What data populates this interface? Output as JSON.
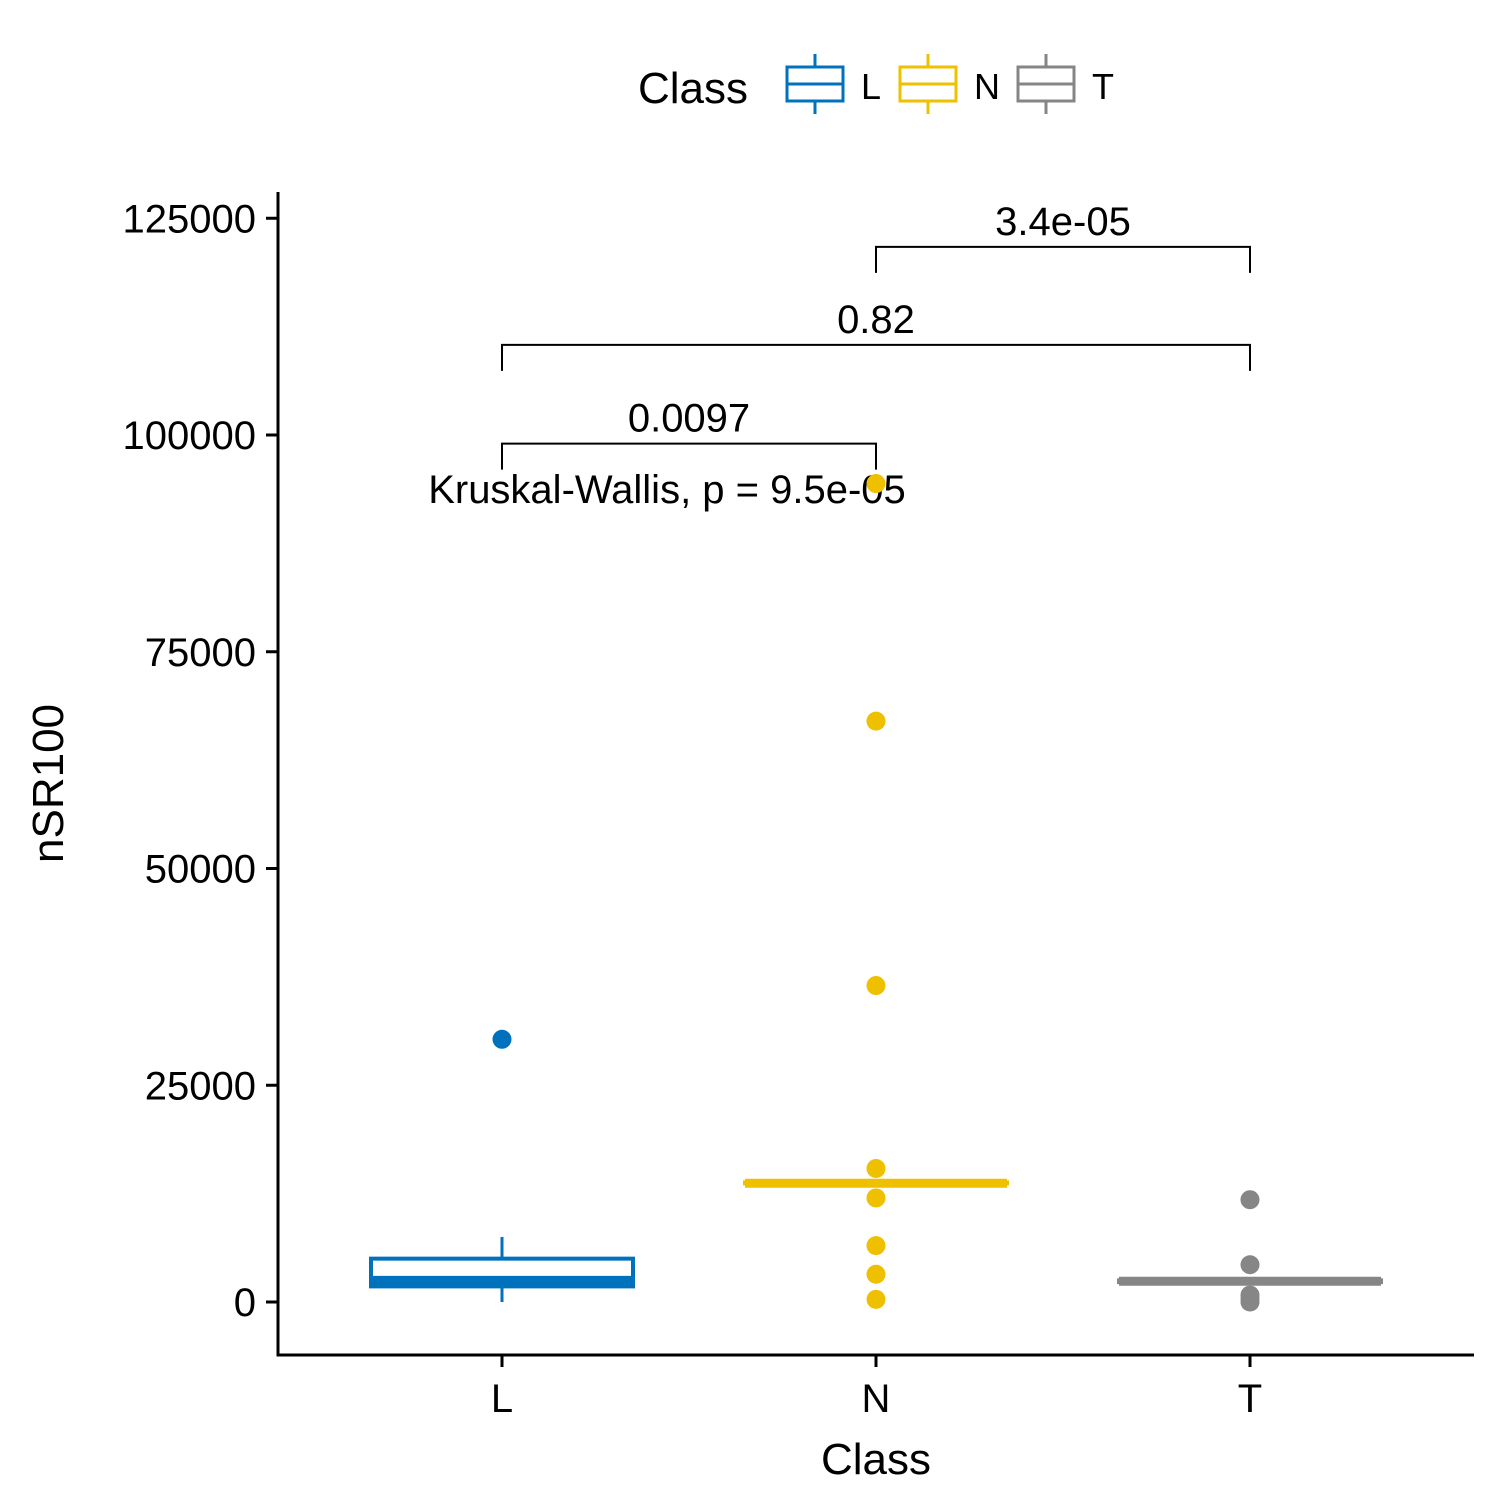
{
  "chart_data": {
    "type": "box",
    "xlabel": "Class",
    "ylabel": "nSR100",
    "categories": [
      "L",
      "N",
      "T"
    ],
    "ylim": [
      -6000,
      127500
    ],
    "yticks": [
      0,
      25000,
      50000,
      75000,
      100000,
      125000
    ],
    "ytick_labels": [
      "0",
      "25000",
      "50000",
      "75000",
      "100000",
      "125000"
    ],
    "legend": {
      "title": "Class",
      "position": "top",
      "entries": [
        "L",
        "N",
        "T"
      ]
    },
    "colors": {
      "L": "#0072BD",
      "N": "#EFC000",
      "T": "#868686"
    },
    "boxes": [
      {
        "category": "L",
        "whisker_low": 0,
        "q1": 1800,
        "median": 2500,
        "q3": 5000,
        "whisker_high": 7500
      },
      {
        "category": "N",
        "whisker_low": 13700,
        "q1": 13700,
        "median": 13700,
        "q3": 13800,
        "whisker_high": 13800
      },
      {
        "category": "T",
        "whisker_low": 2300,
        "q1": 2300,
        "median": 2400,
        "q3": 2500,
        "whisker_high": 2500
      }
    ],
    "outliers": [
      {
        "category": "L",
        "values": [
          30300
        ]
      },
      {
        "category": "N",
        "values": [
          94400,
          67000,
          36500,
          15400,
          12000,
          6500,
          3200,
          300
        ]
      },
      {
        "category": "T",
        "values": [
          11800,
          4300,
          800,
          400,
          0
        ]
      }
    ],
    "comparisons": [
      {
        "from": "L",
        "to": "N",
        "label": "0.0097",
        "y": 99000
      },
      {
        "from": "L",
        "to": "T",
        "label": "0.82",
        "y": 110400
      },
      {
        "from": "N",
        "to": "T",
        "label": "3.4e-05",
        "y": 121700
      }
    ],
    "global_test": {
      "label": "Kruskal-Wallis, p = 9.5e-05",
      "y": 94000,
      "anchor_category": "N"
    }
  }
}
